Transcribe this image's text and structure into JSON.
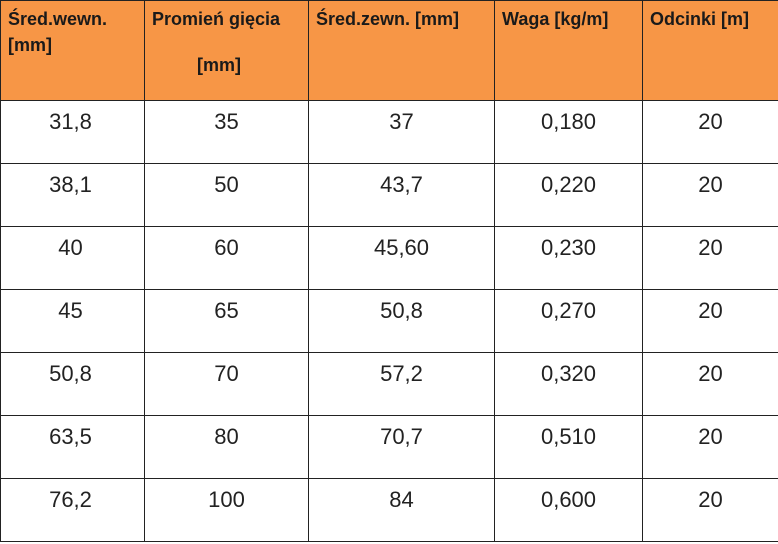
{
  "table": {
    "headers": [
      {
        "line1": "Śred.wewn.",
        "line2": "[mm]"
      },
      {
        "line1": "Promień gięcia",
        "line2": "[mm]"
      },
      {
        "line1": "Śred.zewn. [mm]",
        "line2": ""
      },
      {
        "line1": "Waga [kg/m]",
        "line2": ""
      },
      {
        "line1": "Odcinki [m]",
        "line2": ""
      }
    ],
    "rows": [
      [
        "31,8",
        "35",
        "37",
        "0,180",
        "20"
      ],
      [
        "38,1",
        "50",
        "43,7",
        "0,220",
        "20"
      ],
      [
        "40",
        "60",
        "45,60",
        "0,230",
        "20"
      ],
      [
        "45",
        "65",
        "50,8",
        "0,270",
        "20"
      ],
      [
        "50,8",
        "70",
        "57,2",
        "0,320",
        "20"
      ],
      [
        "63,5",
        "80",
        "70,7",
        "0,510",
        "20"
      ],
      [
        "76,2",
        "100",
        "84",
        "0,600",
        "20"
      ]
    ],
    "header_color": "#f79646",
    "border_color": "#222222"
  }
}
